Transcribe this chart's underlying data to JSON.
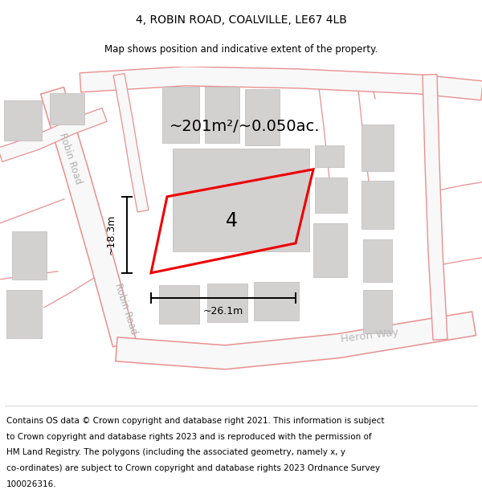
{
  "title": "4, ROBIN ROAD, COALVILLE, LE67 4LB",
  "subtitle": "Map shows position and indicative extent of the property.",
  "area_label": "~201m²/~0.050ac.",
  "number_label": "4",
  "dim_width_label": "~26.1m",
  "dim_height_label": "~18.3m",
  "road_label_1": "Robin Road",
  "road_label_2": "Robin Road",
  "road_label_heron": "Heron Way",
  "map_bg": "#ebebeb",
  "building_color": "#d3d0d0",
  "road_fill_color": "#f8f8f8",
  "road_line_color": "#e89090",
  "plot_outline_color": "#ee0000",
  "dim_line_color": "#111111",
  "footer_lines": [
    "Contains OS data © Crown copyright and database right 2021. This information is subject",
    "to Crown copyright and database rights 2023 and is reproduced with the permission of",
    "HM Land Registry. The polygons (including the associated geometry, namely x, y",
    "co-ordinates) are subject to Crown copyright and database rights 2023 Ordnance Survey",
    "100026316."
  ],
  "title_fontsize": 10,
  "subtitle_fontsize": 8.5,
  "footer_fontsize": 7.5,
  "area_fontsize": 14,
  "number_fontsize": 17,
  "dim_fontsize": 9,
  "road_fontsize": 8.5,
  "heron_fontsize": 9.5
}
